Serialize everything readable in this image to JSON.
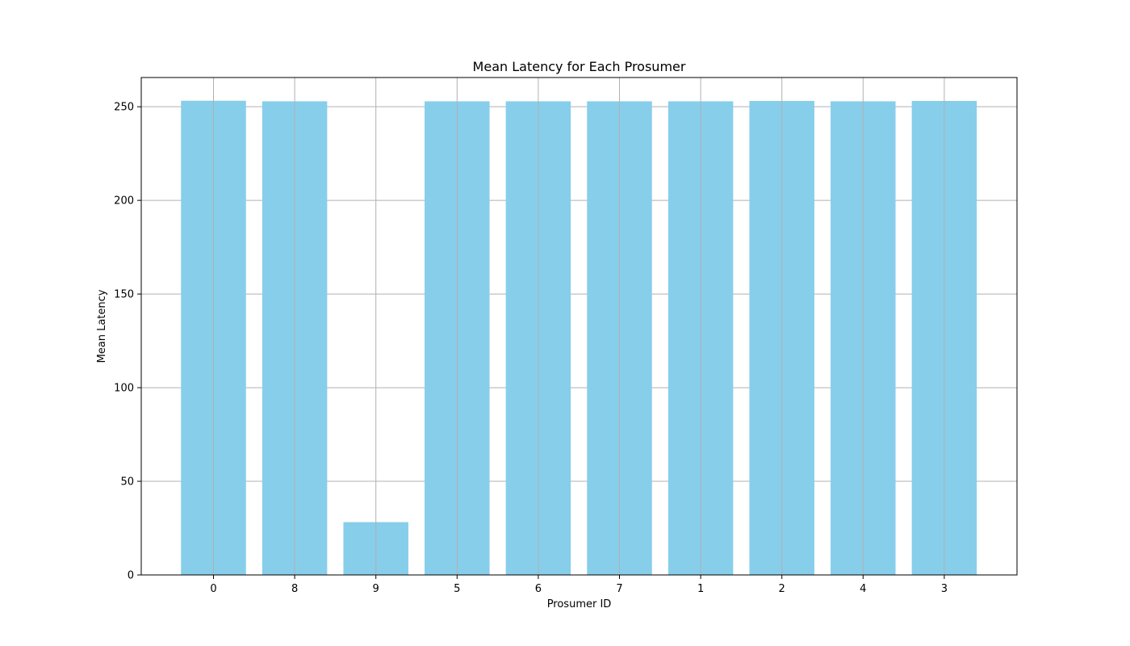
{
  "chart_data": {
    "type": "bar",
    "title": "Mean Latency for Each Prosumer",
    "xlabel": "Prosumer ID",
    "ylabel": "Mean Latency",
    "categories": [
      "0",
      "8",
      "9",
      "5",
      "6",
      "7",
      "1",
      "2",
      "4",
      "3"
    ],
    "values": [
      253.2,
      252.9,
      28.2,
      252.9,
      252.9,
      252.9,
      252.9,
      253.1,
      252.9,
      253.1
    ],
    "ylim": [
      0,
      265.6
    ],
    "yticks": [
      0,
      50,
      100,
      150,
      200,
      250
    ],
    "grid": true,
    "bar_color": "#87ceeb",
    "grid_color": "#b0b0b0"
  }
}
